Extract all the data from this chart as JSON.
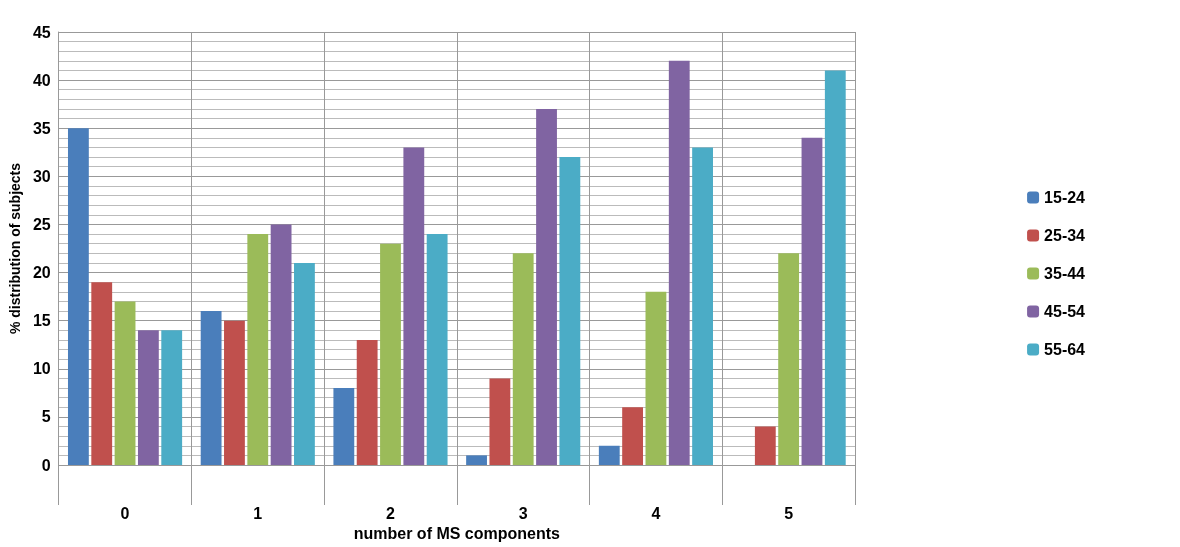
{
  "chart_data": {
    "type": "bar",
    "xlabel": "number of MS components",
    "ylabel": "% distribution of subjects",
    "categories": [
      "0",
      "1",
      "2",
      "3",
      "4",
      "5"
    ],
    "series": [
      {
        "name": "15-24",
        "color": "#4a7ebb",
        "values": [
          35,
          16,
          8,
          1,
          2,
          0
        ]
      },
      {
        "name": "25-34",
        "color": "#c0504d",
        "values": [
          19,
          15,
          13,
          9,
          6,
          4
        ]
      },
      {
        "name": "35-44",
        "color": "#9bbb59",
        "values": [
          17,
          24,
          23,
          22,
          18,
          22
        ]
      },
      {
        "name": "45-54",
        "color": "#8064a2",
        "values": [
          14,
          25,
          33,
          37,
          42,
          34
        ]
      },
      {
        "name": "55-64",
        "color": "#4bacc6",
        "values": [
          14,
          21,
          24,
          32,
          33,
          41
        ]
      }
    ],
    "ylim": [
      0,
      45
    ],
    "yticks": [
      0,
      5,
      10,
      15,
      20,
      25,
      30,
      35,
      40,
      45
    ],
    "grid": true,
    "legend": "right"
  }
}
